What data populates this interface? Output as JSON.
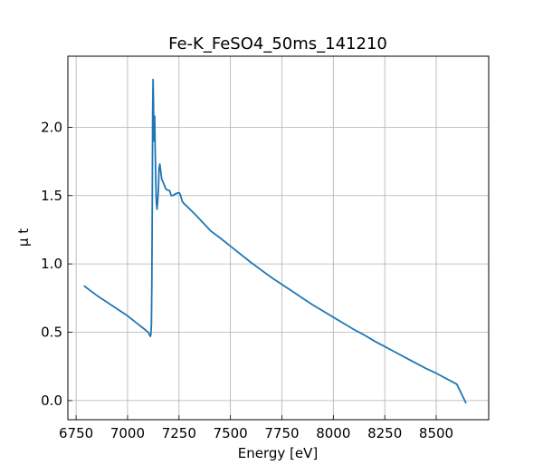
{
  "chart_data": {
    "type": "line",
    "title": "Fe-K_FeSO4_50ms_141210",
    "xlabel": "Energy [eV]",
    "ylabel": "μ t",
    "xlim": [
      6710,
      8755
    ],
    "ylim": [
      -0.14,
      2.52
    ],
    "x_ticks": [
      6750,
      7000,
      7250,
      7500,
      7750,
      8000,
      8250,
      8500
    ],
    "x_tick_labels": [
      "6750",
      "7000",
      "7250",
      "7500",
      "7750",
      "8000",
      "8250",
      "8500"
    ],
    "y_ticks": [
      0.0,
      0.5,
      1.0,
      1.5,
      2.0
    ],
    "y_tick_labels": [
      "0.0",
      "0.5",
      "1.0",
      "1.5",
      "2.0"
    ],
    "grid": true,
    "series": [
      {
        "color": "#1f77b4",
        "points": [
          [
            6788,
            0.84
          ],
          [
            6850,
            0.77
          ],
          [
            6900,
            0.72
          ],
          [
            6950,
            0.67
          ],
          [
            7000,
            0.62
          ],
          [
            7050,
            0.56
          ],
          [
            7080,
            0.525
          ],
          [
            7100,
            0.5
          ],
          [
            7108,
            0.478
          ],
          [
            7111,
            0.47
          ],
          [
            7113,
            0.48
          ],
          [
            7116,
            0.56
          ],
          [
            7118,
            0.85
          ],
          [
            7120,
            1.4
          ],
          [
            7122,
            2.1
          ],
          [
            7124,
            2.35
          ],
          [
            7126,
            2.2
          ],
          [
            7128,
            1.9
          ],
          [
            7130,
            2.05
          ],
          [
            7132,
            2.08
          ],
          [
            7134,
            1.85
          ],
          [
            7136,
            1.7
          ],
          [
            7138,
            1.55
          ],
          [
            7140,
            1.45
          ],
          [
            7143,
            1.4
          ],
          [
            7146,
            1.45
          ],
          [
            7150,
            1.55
          ],
          [
            7153,
            1.7
          ],
          [
            7157,
            1.73
          ],
          [
            7161,
            1.68
          ],
          [
            7166,
            1.62
          ],
          [
            7172,
            1.6
          ],
          [
            7178,
            1.58
          ],
          [
            7185,
            1.55
          ],
          [
            7195,
            1.54
          ],
          [
            7205,
            1.535
          ],
          [
            7212,
            1.5
          ],
          [
            7220,
            1.5
          ],
          [
            7230,
            1.51
          ],
          [
            7245,
            1.52
          ],
          [
            7252,
            1.52
          ],
          [
            7258,
            1.5
          ],
          [
            7265,
            1.46
          ],
          [
            7275,
            1.44
          ],
          [
            7290,
            1.42
          ],
          [
            7310,
            1.39
          ],
          [
            7330,
            1.36
          ],
          [
            7355,
            1.32
          ],
          [
            7380,
            1.28
          ],
          [
            7405,
            1.24
          ],
          [
            7450,
            1.19
          ],
          [
            7500,
            1.13
          ],
          [
            7550,
            1.07
          ],
          [
            7600,
            1.01
          ],
          [
            7650,
            0.955
          ],
          [
            7700,
            0.9
          ],
          [
            7750,
            0.85
          ],
          [
            7800,
            0.8
          ],
          [
            7850,
            0.75
          ],
          [
            7900,
            0.7
          ],
          [
            7950,
            0.655
          ],
          [
            8000,
            0.61
          ],
          [
            8050,
            0.565
          ],
          [
            8100,
            0.52
          ],
          [
            8150,
            0.48
          ],
          [
            8200,
            0.435
          ],
          [
            8250,
            0.395
          ],
          [
            8300,
            0.355
          ],
          [
            8350,
            0.315
          ],
          [
            8400,
            0.275
          ],
          [
            8450,
            0.235
          ],
          [
            8500,
            0.2
          ],
          [
            8550,
            0.16
          ],
          [
            8600,
            0.12
          ],
          [
            8645,
            -0.02
          ]
        ]
      }
    ]
  }
}
